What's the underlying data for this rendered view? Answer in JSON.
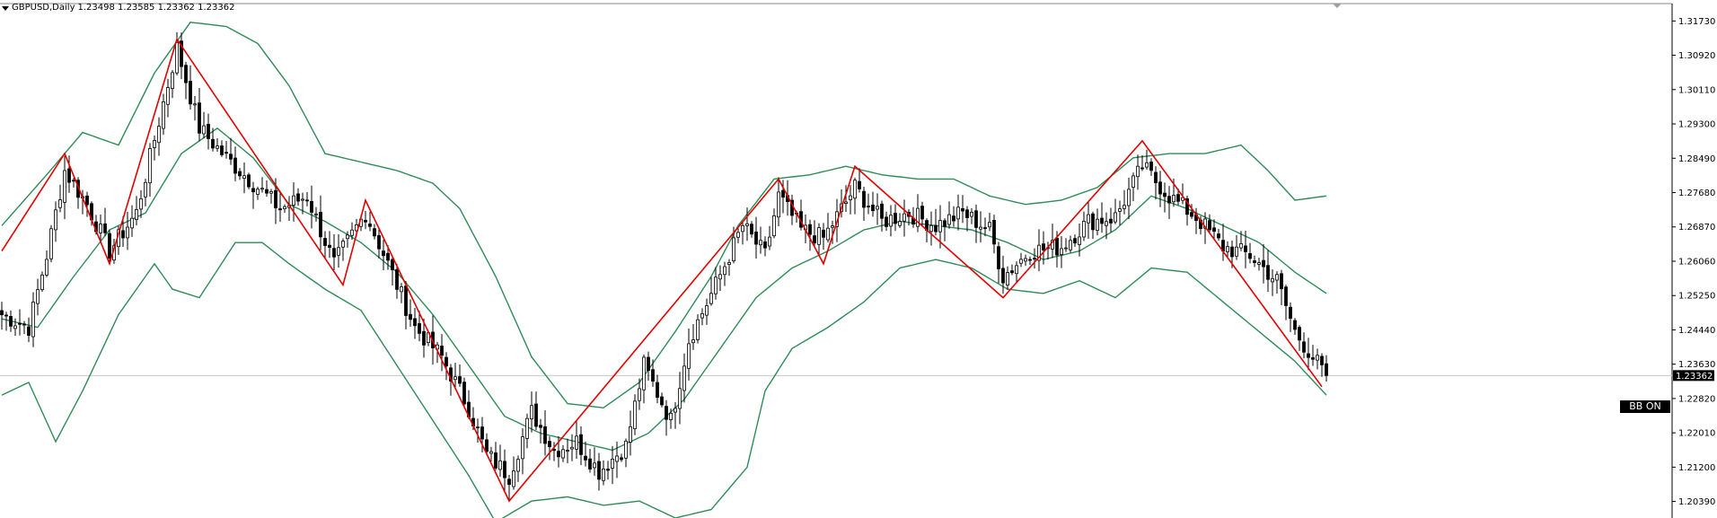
{
  "header": {
    "symbol": "GBPUSD,Daily",
    "ohlc": "1.23498 1.23585 1.23362 1.23362"
  },
  "badge": {
    "label": "BB ON"
  },
  "chart_data": {
    "type": "candlestick",
    "symbol": "GBPUSD",
    "timeframe": "Daily",
    "ylim": [
      1.2,
      1.3214
    ],
    "y_ticks": [
      1.3173,
      1.3092,
      1.3011,
      1.293,
      1.2849,
      1.2768,
      1.2687,
      1.2606,
      1.2525,
      1.2444,
      1.2363,
      1.2282,
      1.2201,
      1.212,
      1.2039
    ],
    "y_tick_labels": [
      "1.31730",
      "1.30920",
      "1.30110",
      "1.29300",
      "1.28490",
      "1.27680",
      "1.26870",
      "1.26060",
      "1.25250",
      "1.24440",
      "1.23630",
      "1.22820",
      "1.22010",
      "1.21200",
      "1.20390"
    ],
    "current_price": 1.23362,
    "current_price_label": "1.23362",
    "bar_count": 296,
    "zigzag_pivots": [
      [
        0,
        1.263
      ],
      [
        14,
        1.286
      ],
      [
        24,
        1.26
      ],
      [
        39,
        1.313
      ],
      [
        76,
        1.255
      ],
      [
        81,
        1.275
      ],
      [
        113,
        1.204
      ],
      [
        173,
        1.28
      ],
      [
        183,
        1.26
      ],
      [
        190,
        1.283
      ],
      [
        223,
        1.252
      ],
      [
        254,
        1.289
      ],
      [
        294,
        1.231
      ]
    ],
    "close_path": [
      [
        0,
        1.248
      ],
      [
        6,
        1.245
      ],
      [
        10,
        1.262
      ],
      [
        14,
        1.282
      ],
      [
        19,
        1.274
      ],
      [
        24,
        1.263
      ],
      [
        30,
        1.272
      ],
      [
        36,
        1.298
      ],
      [
        39,
        1.311
      ],
      [
        44,
        1.292
      ],
      [
        50,
        1.285
      ],
      [
        56,
        1.279
      ],
      [
        62,
        1.273
      ],
      [
        68,
        1.276
      ],
      [
        74,
        1.26
      ],
      [
        81,
        1.272
      ],
      [
        86,
        1.26
      ],
      [
        92,
        1.245
      ],
      [
        98,
        1.238
      ],
      [
        104,
        1.226
      ],
      [
        108,
        1.215
      ],
      [
        113,
        1.21
      ],
      [
        118,
        1.225
      ],
      [
        123,
        1.216
      ],
      [
        128,
        1.218
      ],
      [
        133,
        1.211
      ],
      [
        139,
        1.217
      ],
      [
        143,
        1.236
      ],
      [
        149,
        1.223
      ],
      [
        153,
        1.242
      ],
      [
        159,
        1.255
      ],
      [
        165,
        1.269
      ],
      [
        170,
        1.262
      ],
      [
        173,
        1.276
      ],
      [
        178,
        1.268
      ],
      [
        183,
        1.266
      ],
      [
        190,
        1.278
      ],
      [
        196,
        1.27
      ],
      [
        202,
        1.272
      ],
      [
        208,
        1.269
      ],
      [
        214,
        1.272
      ],
      [
        220,
        1.268
      ],
      [
        223,
        1.257
      ],
      [
        229,
        1.263
      ],
      [
        236,
        1.264
      ],
      [
        242,
        1.27
      ],
      [
        248,
        1.271
      ],
      [
        254,
        1.283
      ],
      [
        260,
        1.276
      ],
      [
        266,
        1.271
      ],
      [
        272,
        1.264
      ],
      [
        278,
        1.262
      ],
      [
        284,
        1.256
      ],
      [
        288,
        1.244
      ],
      [
        294,
        1.235
      ],
      [
        295,
        1.23362
      ]
    ],
    "bollinger_upper": [
      [
        0,
        1.269
      ],
      [
        10,
        1.281
      ],
      [
        18,
        1.291
      ],
      [
        26,
        1.288
      ],
      [
        34,
        1.305
      ],
      [
        42,
        1.317
      ],
      [
        50,
        1.316
      ],
      [
        57,
        1.312
      ],
      [
        64,
        1.302
      ],
      [
        72,
        1.286
      ],
      [
        80,
        1.284
      ],
      [
        88,
        1.282
      ],
      [
        96,
        1.279
      ],
      [
        102,
        1.273
      ],
      [
        110,
        1.257
      ],
      [
        118,
        1.238
      ],
      [
        126,
        1.227
      ],
      [
        134,
        1.226
      ],
      [
        142,
        1.232
      ],
      [
        150,
        1.244
      ],
      [
        158,
        1.257
      ],
      [
        164,
        1.269
      ],
      [
        172,
        1.28
      ],
      [
        180,
        1.281
      ],
      [
        188,
        1.283
      ],
      [
        196,
        1.281
      ],
      [
        204,
        1.28
      ],
      [
        212,
        1.28
      ],
      [
        220,
        1.276
      ],
      [
        228,
        1.274
      ],
      [
        236,
        1.275
      ],
      [
        244,
        1.278
      ],
      [
        252,
        1.285
      ],
      [
        260,
        1.286
      ],
      [
        268,
        1.286
      ],
      [
        276,
        1.288
      ],
      [
        282,
        1.282
      ],
      [
        288,
        1.275
      ],
      [
        295,
        1.276
      ]
    ],
    "bollinger_middle": [
      [
        0,
        1.247
      ],
      [
        8,
        1.245
      ],
      [
        16,
        1.257
      ],
      [
        24,
        1.268
      ],
      [
        32,
        1.272
      ],
      [
        40,
        1.286
      ],
      [
        48,
        1.292
      ],
      [
        56,
        1.285
      ],
      [
        64,
        1.274
      ],
      [
        72,
        1.27
      ],
      [
        80,
        1.265
      ],
      [
        88,
        1.258
      ],
      [
        96,
        1.248
      ],
      [
        104,
        1.236
      ],
      [
        112,
        1.224
      ],
      [
        120,
        1.22
      ],
      [
        128,
        1.218
      ],
      [
        136,
        1.216
      ],
      [
        144,
        1.22
      ],
      [
        152,
        1.228
      ],
      [
        160,
        1.24
      ],
      [
        168,
        1.252
      ],
      [
        176,
        1.259
      ],
      [
        184,
        1.263
      ],
      [
        192,
        1.268
      ],
      [
        200,
        1.27
      ],
      [
        208,
        1.269
      ],
      [
        216,
        1.268
      ],
      [
        224,
        1.265
      ],
      [
        232,
        1.261
      ],
      [
        240,
        1.263
      ],
      [
        248,
        1.268
      ],
      [
        256,
        1.276
      ],
      [
        264,
        1.273
      ],
      [
        272,
        1.269
      ],
      [
        280,
        1.265
      ],
      [
        288,
        1.258
      ],
      [
        295,
        1.253
      ]
    ],
    "bollinger_lower": [
      [
        0,
        1.229
      ],
      [
        6,
        1.232
      ],
      [
        12,
        1.218
      ],
      [
        18,
        1.23
      ],
      [
        26,
        1.248
      ],
      [
        34,
        1.26
      ],
      [
        38,
        1.254
      ],
      [
        44,
        1.252
      ],
      [
        52,
        1.265
      ],
      [
        58,
        1.265
      ],
      [
        64,
        1.26
      ],
      [
        72,
        1.254
      ],
      [
        80,
        1.249
      ],
      [
        88,
        1.236
      ],
      [
        96,
        1.223
      ],
      [
        104,
        1.21
      ],
      [
        110,
        1.199
      ],
      [
        118,
        1.204
      ],
      [
        126,
        1.205
      ],
      [
        134,
        1.203
      ],
      [
        142,
        1.204
      ],
      [
        150,
        1.2
      ],
      [
        158,
        1.202
      ],
      [
        166,
        1.212
      ],
      [
        170,
        1.23
      ],
      [
        176,
        1.24
      ],
      [
        184,
        1.245
      ],
      [
        192,
        1.251
      ],
      [
        200,
        1.259
      ],
      [
        208,
        1.261
      ],
      [
        216,
        1.259
      ],
      [
        224,
        1.254
      ],
      [
        232,
        1.253
      ],
      [
        240,
        1.256
      ],
      [
        248,
        1.252
      ],
      [
        256,
        1.259
      ],
      [
        264,
        1.258
      ],
      [
        272,
        1.251
      ],
      [
        280,
        1.244
      ],
      [
        288,
        1.237
      ],
      [
        295,
        1.229
      ]
    ],
    "series_colors": {
      "zigzag": "#e00000",
      "bollinger": "#2e8b57",
      "candle_up": "#ffffff",
      "candle_down": "#000000",
      "wick": "#000000"
    },
    "grid": false
  }
}
